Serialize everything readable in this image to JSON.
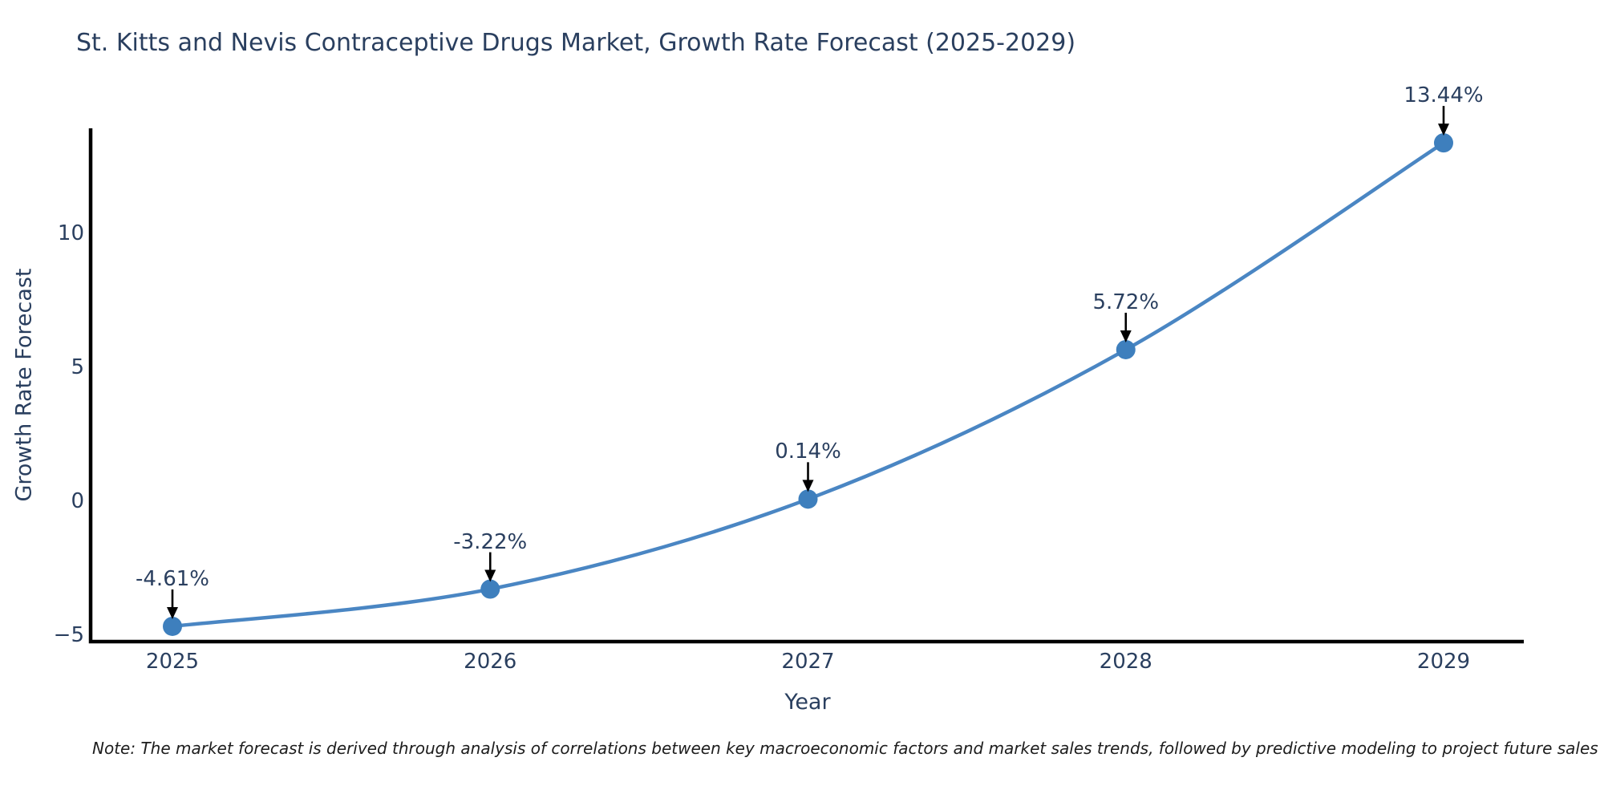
{
  "chart_data": {
    "type": "line",
    "title": "St. Kitts and Nevis Contraceptive Drugs Market, Growth Rate Forecast (2025-2029)",
    "xlabel": "Year",
    "ylabel": "Growth Rate Forecast",
    "x": [
      2025,
      2026,
      2027,
      2028,
      2029
    ],
    "series": [
      {
        "name": "Growth Rate Forecast",
        "values": [
          -4.61,
          -3.22,
          0.14,
          5.72,
          13.44
        ]
      }
    ],
    "point_labels": [
      "-4.61%",
      "-3.22%",
      "0.14%",
      "5.72%",
      "13.44%"
    ],
    "xticks": [
      {
        "value": 2025,
        "label": "2025"
      },
      {
        "value": 2026,
        "label": "2026"
      },
      {
        "value": 2027,
        "label": "2027"
      },
      {
        "value": 2028,
        "label": "2028"
      },
      {
        "value": 2029,
        "label": "2029"
      }
    ],
    "yticks": [
      {
        "value": -5,
        "label": "−5"
      },
      {
        "value": 0,
        "label": "0"
      },
      {
        "value": 5,
        "label": "5"
      },
      {
        "value": 10,
        "label": "10"
      }
    ],
    "ylim": [
      -5.2,
      14.0
    ],
    "xlim": [
      2024.74,
      2029.25
    ],
    "grid": false,
    "legend": "none",
    "line_shape": "spline",
    "colors": {
      "line": "#4a86c3",
      "marker": "#3e7fbd",
      "axis": "#000000",
      "text": "#2a3f5f",
      "annotation_arrow": "#000000",
      "background": "#ffffff"
    }
  },
  "footer": {
    "note": "Note: The market forecast is derived through analysis of correlations between key macroeconomic factors and market sales trends, followed by predictive modeling to project future sales"
  }
}
